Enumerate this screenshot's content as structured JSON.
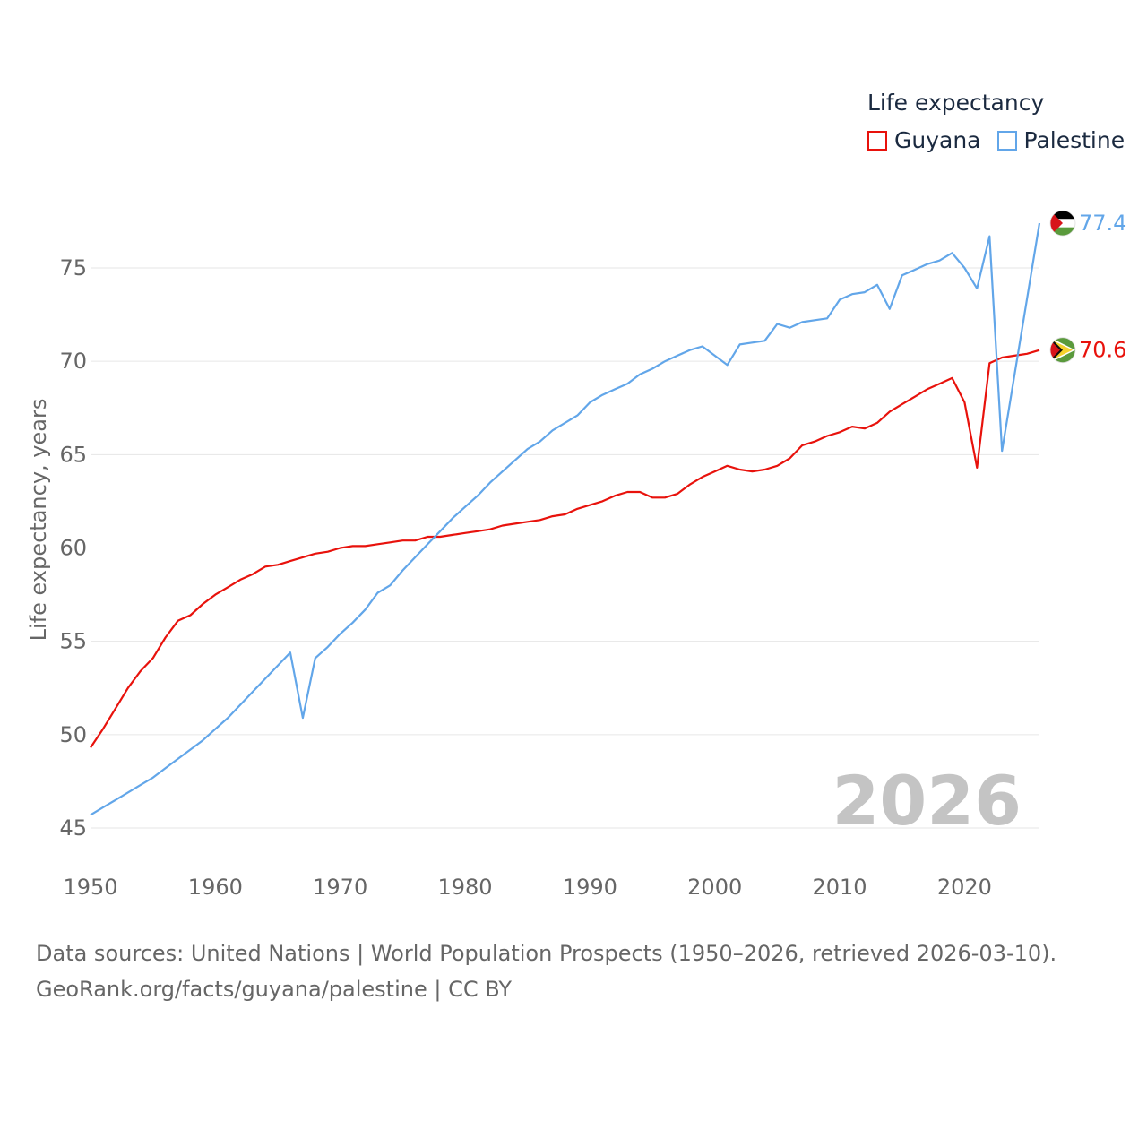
{
  "chart_data": {
    "type": "line",
    "legend_title": "Life expectancy",
    "ylabel": "Life expectancy, years",
    "xlabel": "",
    "current_year": "2026",
    "xlim": [
      1950,
      2026
    ],
    "ylim": [
      45,
      78.5
    ],
    "y_ticks": [
      45,
      50,
      55,
      60,
      65,
      70,
      75
    ],
    "x_ticks": [
      1950,
      1960,
      1970,
      1980,
      1990,
      2000,
      2010,
      2020
    ],
    "series": [
      {
        "name": "Guyana",
        "color": "#e8120c",
        "end_label": "70.6",
        "flag_icon": "guyana-flag-icon",
        "x": [
          1950,
          1951,
          1952,
          1953,
          1954,
          1955,
          1956,
          1957,
          1958,
          1959,
          1960,
          1961,
          1962,
          1963,
          1964,
          1965,
          1966,
          1967,
          1968,
          1969,
          1970,
          1971,
          1972,
          1973,
          1974,
          1975,
          1976,
          1977,
          1978,
          1979,
          1980,
          1981,
          1982,
          1983,
          1984,
          1985,
          1986,
          1987,
          1988,
          1989,
          1990,
          1991,
          1992,
          1993,
          1994,
          1995,
          1996,
          1997,
          1998,
          1999,
          2000,
          2001,
          2002,
          2003,
          2004,
          2005,
          2006,
          2007,
          2008,
          2009,
          2010,
          2011,
          2012,
          2013,
          2014,
          2015,
          2016,
          2017,
          2018,
          2019,
          2020,
          2021,
          2022,
          2023,
          2024,
          2025,
          2026
        ],
        "y": [
          49.3,
          50.3,
          51.4,
          52.5,
          53.4,
          54.1,
          55.2,
          56.1,
          56.4,
          57.0,
          57.5,
          57.9,
          58.3,
          58.6,
          59.0,
          59.1,
          59.3,
          59.5,
          59.7,
          59.8,
          60.0,
          60.1,
          60.1,
          60.2,
          60.3,
          60.4,
          60.4,
          60.6,
          60.6,
          60.7,
          60.8,
          60.9,
          61.0,
          61.2,
          61.3,
          61.4,
          61.5,
          61.7,
          61.8,
          62.1,
          62.3,
          62.5,
          62.8,
          63.0,
          63.0,
          62.7,
          62.7,
          62.9,
          63.4,
          63.8,
          64.1,
          64.4,
          64.2,
          64.1,
          64.2,
          64.4,
          64.8,
          65.5,
          65.7,
          66.0,
          66.2,
          66.5,
          66.4,
          66.7,
          67.3,
          67.7,
          68.1,
          68.5,
          68.8,
          69.1,
          67.8,
          64.3,
          69.9,
          70.2,
          70.3,
          70.4,
          70.6
        ]
      },
      {
        "name": "Palestine",
        "color": "#62a6e9",
        "end_label": "77.4",
        "flag_icon": "palestine-flag-icon",
        "x": [
          1950,
          1951,
          1952,
          1953,
          1954,
          1955,
          1956,
          1957,
          1958,
          1959,
          1960,
          1961,
          1962,
          1963,
          1964,
          1965,
          1966,
          1967,
          1968,
          1969,
          1970,
          1971,
          1972,
          1973,
          1974,
          1975,
          1976,
          1977,
          1978,
          1979,
          1980,
          1981,
          1982,
          1983,
          1984,
          1985,
          1986,
          1987,
          1988,
          1989,
          1990,
          1991,
          1992,
          1993,
          1994,
          1995,
          1996,
          1997,
          1998,
          1999,
          2000,
          2001,
          2002,
          2003,
          2004,
          2005,
          2006,
          2007,
          2008,
          2009,
          2010,
          2011,
          2012,
          2013,
          2014,
          2015,
          2016,
          2017,
          2018,
          2019,
          2020,
          2021,
          2022,
          2023,
          2026
        ],
        "y": [
          45.7,
          46.1,
          46.5,
          46.9,
          47.3,
          47.7,
          48.2,
          48.7,
          49.2,
          49.7,
          50.3,
          50.9,
          51.6,
          52.3,
          53.0,
          53.7,
          54.4,
          50.9,
          54.1,
          54.7,
          55.4,
          56.0,
          56.7,
          57.6,
          58.0,
          58.8,
          59.5,
          60.2,
          60.9,
          61.6,
          62.2,
          62.8,
          63.5,
          64.1,
          64.7,
          65.3,
          65.7,
          66.3,
          66.7,
          67.1,
          67.8,
          68.2,
          68.5,
          68.8,
          69.3,
          69.6,
          70.0,
          70.3,
          70.6,
          70.8,
          70.3,
          69.8,
          70.9,
          71.0,
          71.1,
          72.0,
          71.8,
          72.1,
          72.2,
          72.3,
          73.3,
          73.6,
          73.7,
          74.1,
          72.8,
          74.6,
          74.9,
          75.2,
          75.4,
          75.8,
          75.0,
          73.9,
          76.7,
          65.2,
          77.4
        ]
      }
    ]
  },
  "footer": {
    "source_line": "Data sources: United Nations | World Population Prospects (1950–2026, retrieved 2026-03-10).",
    "credit_line": "GeoRank.org/facts/guyana/palestine | CC BY"
  }
}
